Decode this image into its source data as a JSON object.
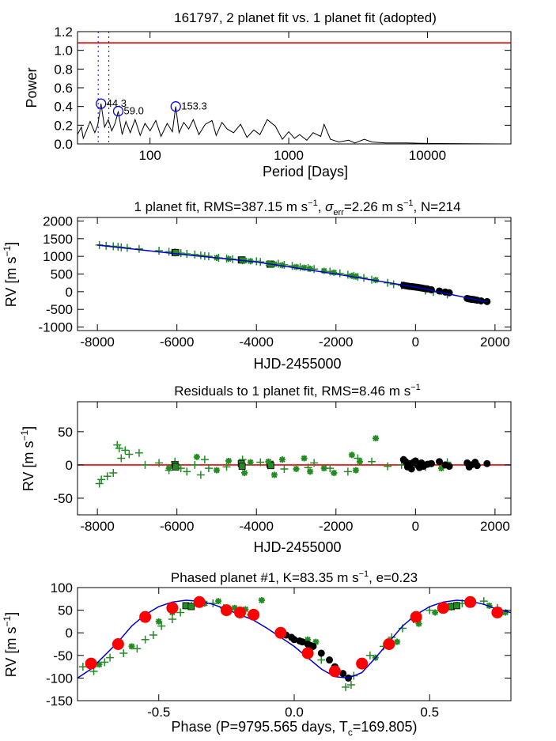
{
  "chart_data": [
    {
      "type": "line",
      "title": "161797,  2 planet fit vs. 1 planet fit (adopted)",
      "xlabel": "Period [Days]",
      "ylabel": "Power",
      "xscale": "log",
      "xlim": [
        30,
        40000
      ],
      "ylim": [
        0,
        1.2
      ],
      "xticks": [
        100,
        1000,
        10000
      ],
      "xtick_labels": [
        "100",
        "1000",
        "10000"
      ],
      "yticks": [
        0.0,
        0.2,
        0.4,
        0.6,
        0.8,
        1.0,
        1.2
      ],
      "ytick_labels": [
        "0.0",
        "0.2",
        "0.4",
        "0.6",
        "0.8",
        "1.0",
        "1.2"
      ],
      "fap_level": 1.08,
      "fap_color": "#ee0000",
      "dotted_lines_x": [
        42.3,
        50.5
      ],
      "peaks": [
        {
          "period": 44.3,
          "power": 0.43,
          "label": "44.3"
        },
        {
          "period": 59.0,
          "power": 0.35,
          "label": "59.0"
        },
        {
          "period": 153.3,
          "power": 0.4,
          "label": "153.3"
        }
      ],
      "series": [
        {
          "name": "periodogram",
          "x": [
            30,
            32,
            33,
            35,
            37,
            40,
            42,
            44.3,
            47,
            50,
            53,
            56,
            59,
            63,
            67,
            72,
            78,
            85,
            92,
            100,
            110,
            120,
            133,
            145,
            153.3,
            162,
            175,
            190,
            205,
            225,
            250,
            280,
            300,
            330,
            360,
            400,
            450,
            500,
            560,
            620,
            700,
            800,
            900,
            1000,
            1100,
            1200,
            1350,
            1500,
            1700,
            1800,
            2000,
            2300,
            2700,
            3000,
            3500,
            4000,
            5000,
            7000,
            10000,
            20000,
            40000
          ],
          "y": [
            0.1,
            0.18,
            0.06,
            0.15,
            0.24,
            0.12,
            0.2,
            0.43,
            0.18,
            0.26,
            0.14,
            0.22,
            0.35,
            0.1,
            0.24,
            0.12,
            0.26,
            0.09,
            0.22,
            0.14,
            0.25,
            0.08,
            0.22,
            0.13,
            0.4,
            0.12,
            0.23,
            0.16,
            0.26,
            0.1,
            0.21,
            0.25,
            0.09,
            0.23,
            0.16,
            0.12,
            0.21,
            0.07,
            0.15,
            0.1,
            0.26,
            0.19,
            0.05,
            0.13,
            0.06,
            0.1,
            0.04,
            0.12,
            0.08,
            0.21,
            0.05,
            0.02,
            0.04,
            0.01,
            0.05,
            0.02,
            0.01,
            0.01,
            0.005,
            0.002,
            0.0
          ]
        }
      ]
    },
    {
      "type": "scatter",
      "title": "1 planet fit, RMS=387.15 m s^-1, σerr=2.26 m s^-1, N=214",
      "title_parts": {
        "pre": "1 planet fit, RMS=387.15 m s",
        "exp1": "−1",
        "mid": ", ",
        "sigma": "σ",
        "sub": "err",
        "post": "=2.26 m s",
        "exp2": "−1",
        "end": ", N=214"
      },
      "xlabel": "HJD-2455000",
      "ylabel": "RV [m s^-1]",
      "ylabel_parts": {
        "base": "RV [m s",
        "exp": "−1",
        "close": "]"
      },
      "xlim": [
        -8500,
        2400
      ],
      "ylim": [
        -1100,
        2100
      ],
      "xticks": [
        -8000,
        -6000,
        -4000,
        -2000,
        0,
        2000
      ],
      "xtick_labels": [
        "-8000",
        "-6000",
        "-4000",
        "-2000",
        "0",
        "2000"
      ],
      "yticks": [
        -1000,
        -500,
        0,
        500,
        1000,
        1500,
        2000
      ],
      "ytick_labels": [
        "-1000",
        "-500",
        "0",
        "500",
        "1000",
        "1500",
        "2000"
      ],
      "model": {
        "x": [
          -8000,
          -6000,
          -4000,
          -2000,
          0,
          1800
        ],
        "y": [
          1320,
          1070,
          840,
          500,
          130,
          -290
        ],
        "color": "#0000cc"
      },
      "series": [
        {
          "name": "keck-old",
          "marker": "plus",
          "color": "#228b22",
          "x": [
            -7950,
            -7780,
            -7600,
            -7480,
            -7400,
            -7250,
            -6950,
            -6450,
            -6200,
            -6050,
            -5900,
            -5750,
            -5550,
            -5400,
            -5300,
            -5200,
            -4950,
            -4750,
            -4600,
            -4350,
            -4000,
            -3900,
            -3450,
            -3300,
            -3100,
            -2900,
            -2700,
            -2550,
            -2150,
            -1900,
            -1700,
            -1550,
            -1450,
            -1300,
            -1100,
            -700,
            -550,
            -350,
            250,
            450,
            800
          ],
          "y": [
            1320,
            1300,
            1285,
            1270,
            1255,
            1240,
            1210,
            1160,
            1130,
            1110,
            1090,
            1070,
            1050,
            1030,
            1010,
            1000,
            960,
            940,
            920,
            890,
            860,
            840,
            790,
            760,
            730,
            700,
            670,
            640,
            570,
            520,
            480,
            450,
            420,
            390,
            340,
            250,
            210,
            180,
            30,
            -10,
            -80
          ]
        },
        {
          "name": "keck-mid",
          "marker": "square",
          "color": "#228b22",
          "x": [
            -6050,
            -6030,
            -4380,
            -4360,
            -3660,
            -3640
          ],
          "y": [
            1110,
            1105,
            900,
            895,
            780,
            778
          ]
        },
        {
          "name": "keck-new",
          "marker": "star",
          "color": "#228b22",
          "x": [
            -5000,
            -4700,
            -4300,
            -4150,
            -3700,
            -3550,
            -3350,
            -3000,
            -2800,
            -2650,
            -2300,
            -2050,
            -1600,
            -1500,
            -1000,
            100,
            350,
            650
          ],
          "y": [
            960,
            930,
            880,
            865,
            800,
            780,
            750,
            700,
            680,
            650,
            590,
            540,
            450,
            430,
            330,
            110,
            60,
            0
          ]
        },
        {
          "name": "apf",
          "marker": "circle",
          "color": "#000000",
          "x": [
            -300,
            -250,
            -200,
            -150,
            -100,
            -50,
            0,
            50,
            100,
            150,
            200,
            250,
            300,
            400,
            600,
            750,
            850,
            1300,
            1350,
            1400,
            1450,
            1500,
            1550,
            1650,
            1800
          ],
          "y": [
            180,
            170,
            160,
            150,
            145,
            140,
            130,
            125,
            115,
            105,
            95,
            85,
            80,
            55,
            20,
            -10,
            -30,
            -190,
            -205,
            -215,
            -220,
            -230,
            -240,
            -260,
            -280
          ]
        }
      ]
    },
    {
      "type": "scatter",
      "title": "Residuals to 1 planet fit, RMS=8.46 m s^-1",
      "title_parts": {
        "pre": "Residuals to 1 planet fit, RMS=8.46 m s",
        "exp": "−1"
      },
      "xlabel": "HJD-2455000",
      "ylabel": "RV [m s^-1]",
      "ylabel_parts": {
        "base": "RV [m s",
        "exp": "−1",
        "close": "]"
      },
      "xlim": [
        -8500,
        2400
      ],
      "ylim": [
        -75,
        95
      ],
      "xticks": [
        -8000,
        -6000,
        -4000,
        -2000,
        0,
        2000
      ],
      "xtick_labels": [
        "-8000",
        "-6000",
        "-4000",
        "-2000",
        "0",
        "2000"
      ],
      "yticks": [
        -50,
        0,
        50
      ],
      "ytick_labels": [
        "-50",
        "0",
        "50"
      ],
      "zero_line_color": "#ee0000",
      "series": [
        {
          "name": "keck-old",
          "marker": "plus",
          "color": "#228b22",
          "x": [
            -7950,
            -7900,
            -7750,
            -7600,
            -7500,
            -7450,
            -7400,
            -7300,
            -7200,
            -6950,
            -6800,
            -6450,
            -6200,
            -6050,
            -5900,
            -5750,
            -5550,
            -5400,
            -5300,
            -5200,
            -4750,
            -4350,
            -3900,
            -3300,
            -2700,
            -2550,
            -2150,
            -1700,
            -1450,
            -1100,
            -700,
            -350,
            250,
            800
          ],
          "y": [
            -28,
            -22,
            -17,
            -12,
            30,
            25,
            10,
            22,
            16,
            18,
            0,
            3,
            -8,
            5,
            -5,
            -10,
            0,
            -15,
            8,
            -5,
            -3,
            8,
            4,
            -6,
            -4,
            3,
            -5,
            -10,
            10,
            5,
            -2,
            0,
            -3,
            4
          ]
        },
        {
          "name": "keck-mid",
          "marker": "square",
          "color": "#228b22",
          "x": [
            -6050,
            -6030,
            -4380,
            -4360,
            -3660,
            -3640
          ],
          "y": [
            0,
            -3,
            2,
            -2,
            1,
            -1
          ]
        },
        {
          "name": "keck-new",
          "marker": "star",
          "color": "#228b22",
          "x": [
            -6200,
            -5500,
            -5000,
            -4700,
            -4300,
            -4150,
            -3700,
            -3550,
            -3350,
            -3000,
            -2800,
            -2650,
            -2300,
            -2050,
            -1600,
            -1500,
            -1400,
            -1000,
            100,
            350,
            650
          ],
          "y": [
            -5,
            12,
            -8,
            6,
            -12,
            4,
            5,
            -15,
            8,
            -6,
            10,
            -10,
            -5,
            -12,
            15,
            -8,
            5,
            40,
            -3,
            2,
            -5
          ]
        },
        {
          "name": "apf",
          "marker": "circle",
          "color": "#000000",
          "x": [
            -300,
            -250,
            -200,
            -150,
            -100,
            -50,
            0,
            50,
            100,
            150,
            200,
            300,
            400,
            600,
            750,
            850,
            1300,
            1350,
            1400,
            1500,
            1550,
            1800
          ],
          "y": [
            8,
            5,
            -3,
            2,
            -6,
            4,
            6,
            0,
            -4,
            3,
            -2,
            1,
            2,
            5,
            0,
            -2,
            3,
            -3,
            0,
            4,
            -1,
            2
          ]
        }
      ]
    },
    {
      "type": "scatter",
      "title": "Phased planet #1, K=83.35 m s^-1, e=0.23",
      "title_parts": {
        "pre": "Phased planet #1, K=83.35 m s",
        "exp": "−1",
        "post": ", e=0.23"
      },
      "xlabel": "Phase (P=9795.565 days, Tc=169.805)",
      "xlabel_parts": {
        "pre": "Phase (P=9795.565 days, T",
        "sub": "c",
        "post": "=169.805)"
      },
      "ylabel": "RV [m s^-1]",
      "ylabel_parts": {
        "base": "RV [m s",
        "exp": "−1",
        "close": "]"
      },
      "xlim": [
        -0.8,
        0.8
      ],
      "ylim": [
        -150,
        100
      ],
      "xticks": [
        -0.5,
        0.0,
        0.5
      ],
      "xtick_labels": [
        "-0.5",
        "0.0",
        "0.5"
      ],
      "yticks": [
        -150,
        -100,
        -50,
        0,
        50,
        100
      ],
      "ytick_labels": [
        "-150",
        "-100",
        "-50",
        "0",
        "50",
        "100"
      ],
      "model": {
        "x": [
          -0.8,
          -0.75,
          -0.7,
          -0.65,
          -0.6,
          -0.55,
          -0.5,
          -0.45,
          -0.4,
          -0.35,
          -0.3,
          -0.25,
          -0.2,
          -0.15,
          -0.1,
          -0.05,
          0.0,
          0.05,
          0.1,
          0.15,
          0.2,
          0.25,
          0.3,
          0.35,
          0.4,
          0.45,
          0.5,
          0.55,
          0.6,
          0.65,
          0.7,
          0.75,
          0.8
        ],
        "y": [
          -100,
          -80,
          -50,
          -20,
          15,
          40,
          58,
          68,
          72,
          70,
          63,
          52,
          40,
          28,
          10,
          -10,
          -30,
          -55,
          -80,
          -97,
          -100,
          -88,
          -55,
          -20,
          15,
          40,
          58,
          68,
          72,
          70,
          63,
          52,
          45
        ],
        "color": "#0000cc"
      },
      "series": [
        {
          "name": "keck-old",
          "marker": "plus",
          "color": "#228b22",
          "x": [
            -0.78,
            -0.74,
            -0.7,
            -0.68,
            -0.63,
            -0.58,
            -0.55,
            -0.52,
            -0.49,
            -0.45,
            -0.42,
            -0.38,
            -0.3,
            -0.26,
            -0.2,
            -0.16,
            0.1,
            0.15,
            0.19,
            0.21,
            0.22,
            0.25,
            0.28,
            0.33,
            0.36,
            0.4,
            0.44,
            0.5,
            0.55,
            0.58,
            0.62,
            0.7,
            0.75
          ],
          "y": [
            -75,
            -85,
            -65,
            -55,
            -45,
            -35,
            -15,
            -5,
            15,
            30,
            45,
            60,
            65,
            55,
            45,
            40,
            -60,
            -80,
            -120,
            -115,
            -95,
            -70,
            -50,
            -30,
            -10,
            10,
            30,
            50,
            60,
            58,
            65,
            70,
            55
          ]
        },
        {
          "name": "keck-new",
          "marker": "star",
          "color": "#228b22",
          "x": [
            -0.72,
            -0.6,
            -0.5,
            -0.45,
            -0.4,
            -0.33,
            -0.28,
            -0.22,
            -0.18,
            -0.12,
            0.05,
            0.08,
            0.3,
            0.38,
            0.46,
            0.52,
            0.6,
            0.66,
            0.72,
            0.78
          ],
          "y": [
            -70,
            -30,
            25,
            45,
            60,
            65,
            70,
            55,
            52,
            72,
            -15,
            -20,
            -55,
            -20,
            20,
            45,
            62,
            70,
            60,
            45
          ]
        },
        {
          "name": "keck-mid",
          "marker": "square",
          "color": "#228b22",
          "x": [
            -0.4,
            -0.38,
            0.58,
            0.6
          ],
          "y": [
            60,
            58,
            58,
            60
          ]
        },
        {
          "name": "apf",
          "marker": "circle",
          "color": "#000000",
          "x": [
            -0.05,
            -0.03,
            -0.01,
            0.0,
            0.02,
            0.03,
            0.05,
            0.06,
            0.07,
            0.1,
            0.13,
            0.15,
            0.18,
            0.2
          ],
          "y": [
            0,
            -5,
            -10,
            -15,
            -18,
            -20,
            -25,
            -28,
            -30,
            -45,
            -60,
            -75,
            -90,
            -100
          ]
        },
        {
          "name": "binned",
          "marker": "bigcircle",
          "color": "#ff0000",
          "x": [
            -0.75,
            -0.65,
            -0.55,
            -0.45,
            -0.35,
            -0.25,
            -0.2,
            -0.15,
            -0.05,
            0.05,
            0.15,
            0.25,
            0.35,
            0.45,
            0.55,
            0.65,
            0.75
          ],
          "y": [
            -68,
            -25,
            35,
            55,
            68,
            50,
            45,
            40,
            0,
            -45,
            -85,
            -68,
            -25,
            35,
            55,
            68,
            45
          ]
        }
      ]
    }
  ]
}
